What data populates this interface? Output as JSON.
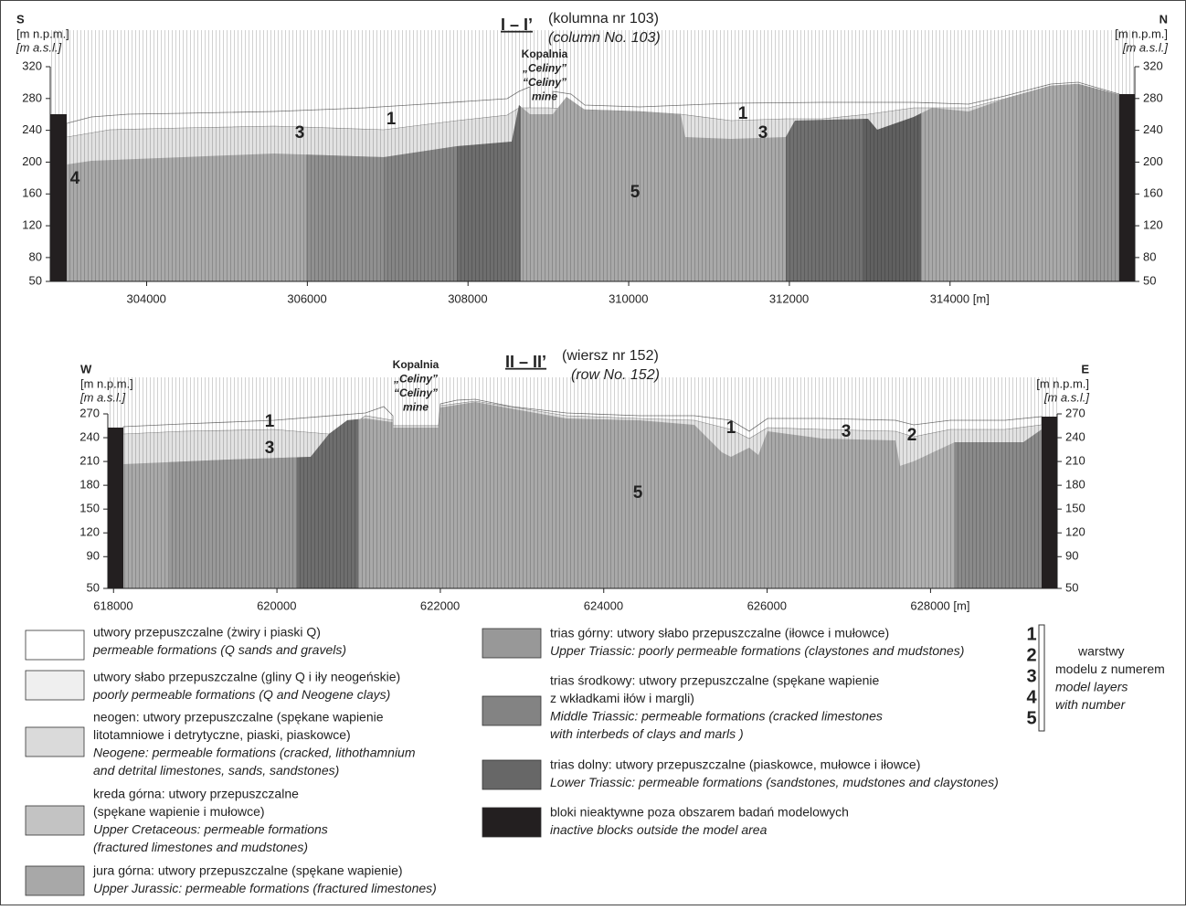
{
  "sections": [
    {
      "title_code": "I – I’",
      "title_pl": "(kolumna nr 103)",
      "title_en": "(column No. 103)",
      "left_dir": "S",
      "right_dir": "N",
      "unit_pl": "[m n.p.m.]",
      "unit_en": "[m a.s.l.]",
      "ylim": [
        50,
        320
      ],
      "yticks": [
        50,
        80,
        120,
        160,
        200,
        240,
        280,
        320
      ],
      "xlim": [
        302800,
        316300
      ],
      "xticks": [
        304000,
        306000,
        308000,
        310000,
        312000,
        {
          "value": 314000,
          "label": "314000 [m]"
        }
      ],
      "mine": [
        "Kopalnia",
        "„Celiny”",
        "“Celiny”",
        "mine"
      ],
      "layer_labels": [
        "1",
        "3",
        "4",
        "1",
        "3",
        "5"
      ]
    },
    {
      "title_code": "II – II’",
      "title_pl": "(wiersz nr 152)",
      "title_en": "(row No. 152)",
      "left_dir": "W",
      "right_dir": "E",
      "unit_pl": "[m n.p.m.]",
      "unit_en": "[m a.s.l.]",
      "ylim": [
        50,
        270
      ],
      "yticks": [
        50,
        90,
        120,
        150,
        180,
        210,
        240,
        270
      ],
      "xlim": [
        617930,
        629550
      ],
      "xticks": [
        618000,
        620000,
        622000,
        624000,
        626000,
        {
          "value": 628000,
          "label": "628000 [m]"
        }
      ],
      "mine": [
        "Kopalnia",
        "„Celiny”",
        "“Celiny”",
        "mine"
      ],
      "layer_labels": [
        "1",
        "3",
        "1",
        "3",
        "2",
        "5"
      ]
    }
  ],
  "legend": [
    {
      "color": "#ffffff",
      "pl": [
        "utwory przepuszczalne (żwiry i piaski Q)"
      ],
      "en": [
        "permeable formations (Q sands and gravels)"
      ]
    },
    {
      "color": "#efefef",
      "pl": [
        "utwory słabo przepuszczalne (gliny Q i iły neogeńskie)"
      ],
      "en": [
        "poorly permeable formations (Q and Neogene clays)"
      ]
    },
    {
      "color": "#dadada",
      "pl": [
        "neogen: utwory przepuszczalne (spękane wapienie",
        "litotamniowe i detrytyczne, piaski, piaskowce)"
      ],
      "en": [
        "Neogene: permeable formations (cracked, lithothamnium",
        "and detrital limestones, sands, sandstones)"
      ]
    },
    {
      "color": "#c3c3c3",
      "pl": [
        "kreda górna: utwory przepuszczalne",
        "(spękane wapienie i mułowce)"
      ],
      "en": [
        "Upper Cretaceous: permeable formations",
        "(fractured limestones and mudstones)"
      ]
    },
    {
      "color": "#a8a8a8",
      "pl": [
        "jura górna: utwory przepuszczalne (spękane wapienie)"
      ],
      "en": [
        "Upper Jurassic: permeable formations (fractured limestones)"
      ]
    },
    {
      "color": "#989898",
      "pl": [
        "trias górny: utwory słabo przepuszczalne (iłowce i mułowce)"
      ],
      "en": [
        "Upper Triassic: poorly permeable formations (claystones and mudstones)"
      ]
    },
    {
      "color": "#838383",
      "pl": [
        "trias środkowy: utwory przepuszczalne (spękane wapienie",
        "z wkładkami iłów i margli)"
      ],
      "en": [
        "Middle Triassic: permeable formations (cracked limestones",
        "with interbeds of clays and marls )"
      ]
    },
    {
      "color": "#676767",
      "pl": [
        "trias dolny: utwory przepuszczalne (piaskowce, mułowce i iłowce)"
      ],
      "en": [
        "Lower Triassic: permeable formations (sandstones, mudstones and claystones)"
      ]
    },
    {
      "color": "#231f20",
      "pl": [
        "bloki nieaktywne poza obszarem badań modelowych"
      ],
      "en": [
        "inactive blocks outside the model area"
      ]
    }
  ],
  "layers": {
    "numbers": [
      "1",
      "2",
      "3",
      "4",
      "5"
    ],
    "pl": [
      "warstwy",
      "modelu z numerem"
    ],
    "en": [
      "model layers",
      "with number"
    ]
  }
}
